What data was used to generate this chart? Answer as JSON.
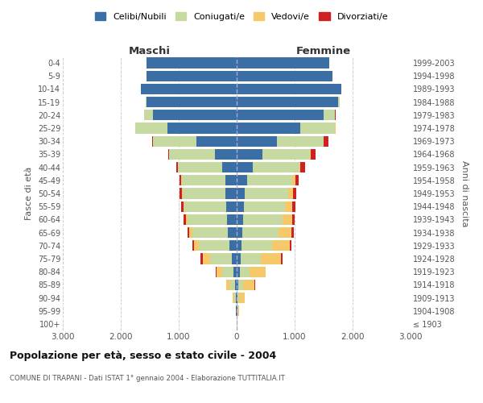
{
  "age_groups": [
    "100+",
    "95-99",
    "90-94",
    "85-89",
    "80-84",
    "75-79",
    "70-74",
    "65-69",
    "60-64",
    "55-59",
    "50-54",
    "45-49",
    "40-44",
    "35-39",
    "30-34",
    "25-29",
    "20-24",
    "15-19",
    "10-14",
    "5-9",
    "0-4"
  ],
  "birth_years": [
    "≤ 1903",
    "1904-1908",
    "1909-1913",
    "1914-1918",
    "1919-1923",
    "1924-1928",
    "1929-1933",
    "1934-1938",
    "1939-1943",
    "1944-1948",
    "1949-1953",
    "1954-1958",
    "1959-1963",
    "1964-1968",
    "1969-1973",
    "1974-1978",
    "1979-1983",
    "1984-1988",
    "1989-1993",
    "1994-1998",
    "1999-2003"
  ],
  "colors": {
    "celibi": "#3a6ea5",
    "coniugati": "#c5d9a0",
    "vedovi": "#f5c96a",
    "divorziati": "#cc2222"
  },
  "maschi": {
    "celibi": [
      5,
      10,
      20,
      30,
      50,
      80,
      120,
      150,
      170,
      180,
      190,
      200,
      250,
      380,
      700,
      1200,
      1450,
      1550,
      1650,
      1550,
      1550
    ],
    "coniugati": [
      0,
      5,
      25,
      80,
      200,
      380,
      530,
      620,
      680,
      720,
      740,
      750,
      760,
      780,
      750,
      550,
      150,
      20,
      5,
      0,
      0
    ],
    "vedovi": [
      0,
      5,
      30,
      70,
      100,
      130,
      80,
      50,
      30,
      20,
      10,
      5,
      0,
      0,
      0,
      0,
      0,
      0,
      0,
      0,
      0
    ],
    "divorziati": [
      0,
      0,
      0,
      5,
      5,
      30,
      30,
      30,
      40,
      40,
      40,
      30,
      30,
      20,
      10,
      5,
      0,
      0,
      0,
      0,
      0
    ]
  },
  "femmine": {
    "celibi": [
      5,
      10,
      20,
      30,
      60,
      70,
      80,
      100,
      110,
      120,
      140,
      180,
      280,
      450,
      700,
      1100,
      1500,
      1750,
      1800,
      1650,
      1600
    ],
    "coniugati": [
      0,
      5,
      20,
      80,
      160,
      350,
      530,
      620,
      680,
      720,
      750,
      780,
      800,
      820,
      800,
      600,
      200,
      30,
      5,
      0,
      0
    ],
    "vedovi": [
      5,
      30,
      100,
      200,
      280,
      350,
      300,
      230,
      170,
      120,
      80,
      50,
      20,
      10,
      5,
      5,
      0,
      0,
      0,
      0,
      0
    ],
    "divorziati": [
      0,
      0,
      0,
      5,
      5,
      20,
      30,
      30,
      40,
      50,
      60,
      60,
      80,
      80,
      80,
      10,
      5,
      0,
      0,
      0,
      0
    ]
  },
  "title": "Popolazione per età, sesso e stato civile - 2004",
  "subtitle": "COMUNE DI TRAPANI - Dati ISTAT 1° gennaio 2004 - Elaborazione TUTTITALIA.IT",
  "xlabel_left": "Maschi",
  "xlabel_right": "Femmine",
  "ylabel_left": "Fasce di età",
  "ylabel_right": "Anni di nascita",
  "xlim": 3000,
  "legend_labels": [
    "Celibi/Nubili",
    "Coniugati/e",
    "Vedovi/e",
    "Divorziati/e"
  ],
  "background_color": "#ffffff",
  "grid_color": "#cccccc"
}
